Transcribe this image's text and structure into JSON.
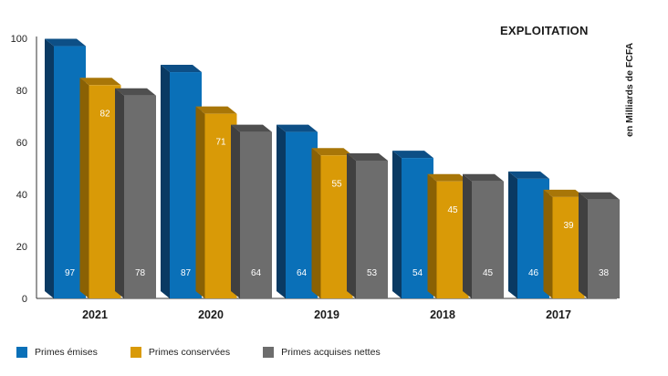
{
  "chart_data": {
    "type": "bar",
    "title": "EXPLOITATION",
    "ylabel": "en Milliards de FCFA",
    "xlabel": "",
    "ylim": [
      0,
      100
    ],
    "yticks": [
      0,
      20,
      40,
      60,
      80,
      100
    ],
    "categories": [
      "2021",
      "2020",
      "2019",
      "2018",
      "2017"
    ],
    "series": [
      {
        "name": "Primes émises",
        "color": "#0a70b8",
        "top_color": "#0d4f86",
        "side_color": "#0a3a63",
        "values": [
          97,
          87,
          64,
          54,
          46
        ],
        "labels": [
          "97",
          "87",
          "64",
          "54",
          "46"
        ]
      },
      {
        "name": "Primes conservées",
        "color": "#d99a07",
        "top_color": "#a87608",
        "side_color": "#8a6104",
        "values": [
          82,
          71,
          55,
          45,
          39
        ],
        "labels": [
          "82",
          "71",
          "55",
          "45",
          "39"
        ]
      },
      {
        "name": "Primes acquises nettes",
        "color": "#6d6d6d",
        "top_color": "#4f4f4f",
        "side_color": "#404040",
        "values": [
          78,
          64,
          53,
          45,
          38
        ],
        "labels": [
          "78",
          "64",
          "53",
          "45",
          "38"
        ]
      }
    ],
    "grid": false,
    "legend_position": "bottom-left"
  }
}
